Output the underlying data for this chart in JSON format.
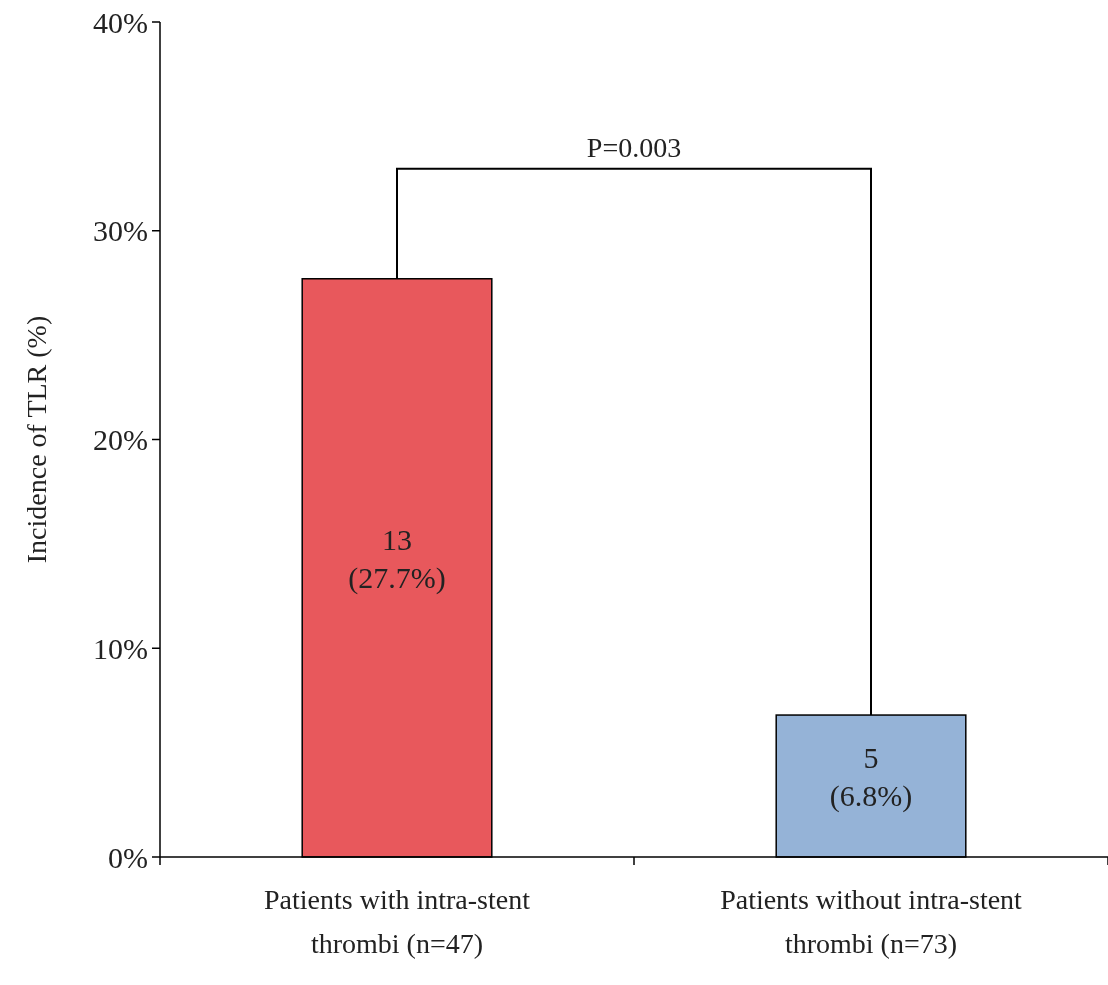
{
  "chart_data": {
    "type": "bar",
    "ylabel": "Incidence of TLR (%)",
    "categories": [
      "Patients with intra-stent thrombi (n=47)",
      "Patients without intra-stent thrombi (n=73)"
    ],
    "values": [
      27.7,
      6.8
    ],
    "colors": [
      "#e8585c",
      "#95b3d7"
    ],
    "value_labels": [
      "13\n(27.7%)",
      "5\n(6.8%)"
    ],
    "ylim": [
      0,
      40
    ],
    "yticks": [
      {
        "value": 0,
        "label": "0%"
      },
      {
        "value": 10,
        "label": "10%"
      },
      {
        "value": 20,
        "label": "20%"
      },
      {
        "value": 30,
        "label": "30%"
      },
      {
        "value": 40,
        "label": "40%"
      }
    ],
    "annotations": [
      "P=0.003"
    ],
    "grid": false
  }
}
